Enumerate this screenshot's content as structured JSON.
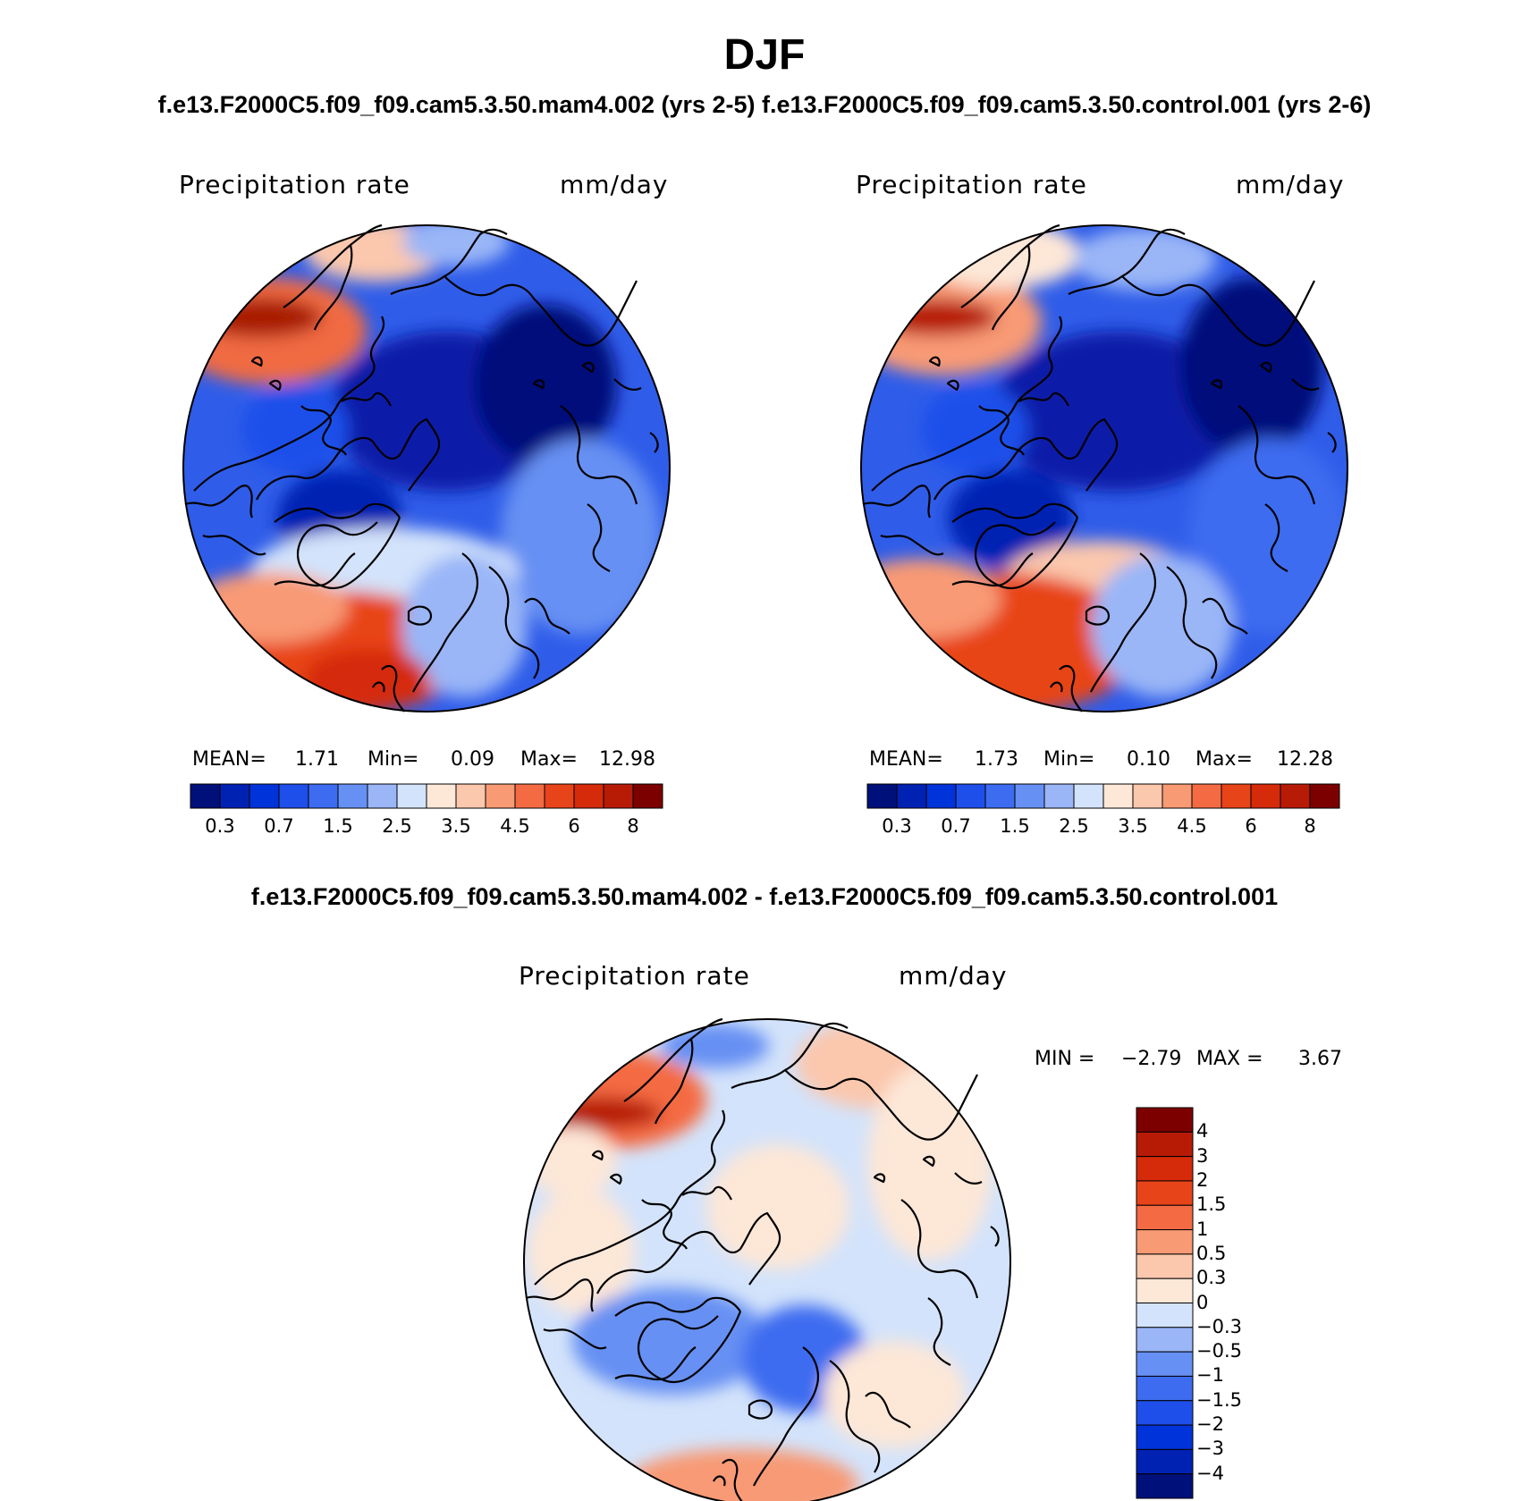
{
  "title": "DJF",
  "run_titles": "f.e13.F2000C5.f09_f09.cam5.3.50.mam4.002 (yrs 2-5) f.e13.F2000C5.f09_f09.cam5.3.50.control.001 (yrs 2-6)",
  "diff_title": "f.e13.F2000C5.f09_f09.cam5.3.50.mam4.002 - f.e13.F2000C5.f09_f09.cam5.3.50.control.001",
  "panels": [
    {
      "variable": "Precipitation rate",
      "units": "mm/day",
      "stats": {
        "mean_label": "MEAN=",
        "mean": "1.71",
        "min_label": "Min=",
        "min": "0.09",
        "max_label": "Max=",
        "max": "12.98"
      }
    },
    {
      "variable": "Precipitation rate",
      "units": "mm/day",
      "stats": {
        "mean_label": "MEAN=",
        "mean": "1.73",
        "min_label": "Min=",
        "min": "0.10",
        "max_label": "Max=",
        "max": "12.28"
      }
    }
  ],
  "diff_panel": {
    "variable": "Precipitation rate",
    "units": "mm/day",
    "stats": {
      "min_label": "MIN =",
      "min": "−2.79",
      "max_label": "MAX =",
      "max": "3.67"
    }
  },
  "colorbar_abs": {
    "colors": [
      "#00107a",
      "#0022b3",
      "#0033d9",
      "#1f4fea",
      "#3d6cf0",
      "#6690f3",
      "#9ab6f7",
      "#d3e3fb",
      "#fde7d7",
      "#fbc7ad",
      "#f89a74",
      "#f46b43",
      "#e84419",
      "#d52b0a",
      "#b71b06",
      "#7d0000"
    ],
    "tick_labels": [
      "0.3",
      "0.7",
      "1.5",
      "2.5",
      "3.5",
      "4.5",
      "6",
      "8"
    ]
  },
  "colorbar_diff": {
    "colors_top_to_bottom": [
      "#7d0000",
      "#b71b06",
      "#d52b0a",
      "#e84419",
      "#f46b43",
      "#f89a74",
      "#fbc7ad",
      "#fde7d7",
      "#d3e3fb",
      "#9ab6f7",
      "#6690f3",
      "#3d6cf0",
      "#1f4fea",
      "#0033d9",
      "#0022b3",
      "#00107a"
    ],
    "tick_labels": [
      "4",
      "3",
      "2",
      "1.5",
      "1",
      "0.5",
      "0.3",
      "0",
      "−0.3",
      "−0.5",
      "−1",
      "−1.5",
      "−2",
      "−3",
      "−4"
    ]
  }
}
